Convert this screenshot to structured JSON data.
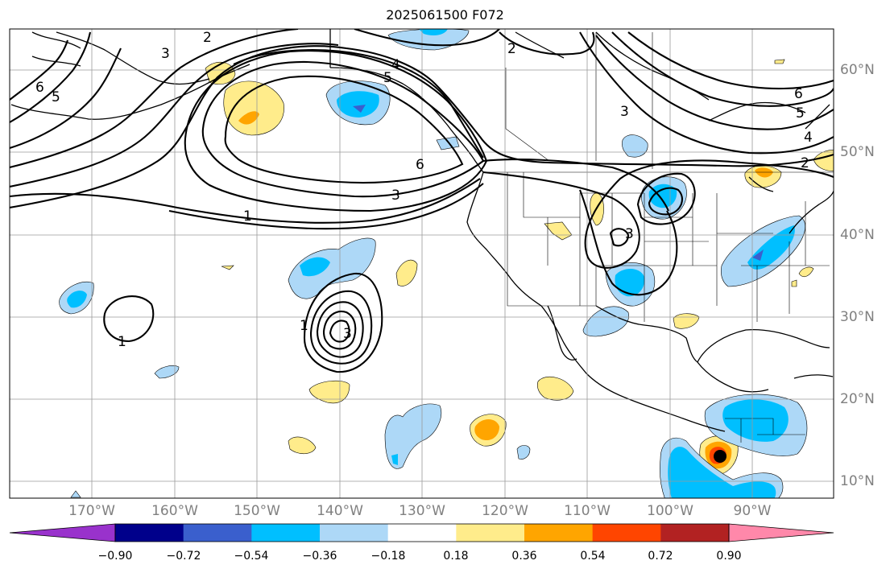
{
  "title": "2025061500 F072",
  "lon_labels": [
    "170°W",
    "160°W",
    "150°W",
    "140°W",
    "130°W",
    "120°W",
    "110°W",
    "100°W",
    "90°W"
  ],
  "lat_labels": [
    "60°N",
    "50°N",
    "40°N",
    "30°N",
    "20°N",
    "10°N"
  ],
  "colorbar": {
    "tick_labels": [
      "−0.90",
      "−0.72",
      "−0.54",
      "−0.36",
      "−0.18",
      "0.18",
      "0.36",
      "0.54",
      "0.72",
      "0.90"
    ],
    "colors": [
      "#9932cc",
      "#00008b",
      "#3a5fcd",
      "#00bfff",
      "#add8f7",
      "#ffffff",
      "#ffec8b",
      "#ffa500",
      "#ff4500",
      "#b22222",
      "#ff88aa"
    ]
  },
  "contour_labels": [
    "1",
    "1",
    "1",
    "2",
    "2",
    "2",
    "3",
    "3",
    "3",
    "3",
    "3",
    "4",
    "4",
    "5",
    "5",
    "5",
    "6",
    "6",
    "6"
  ]
}
